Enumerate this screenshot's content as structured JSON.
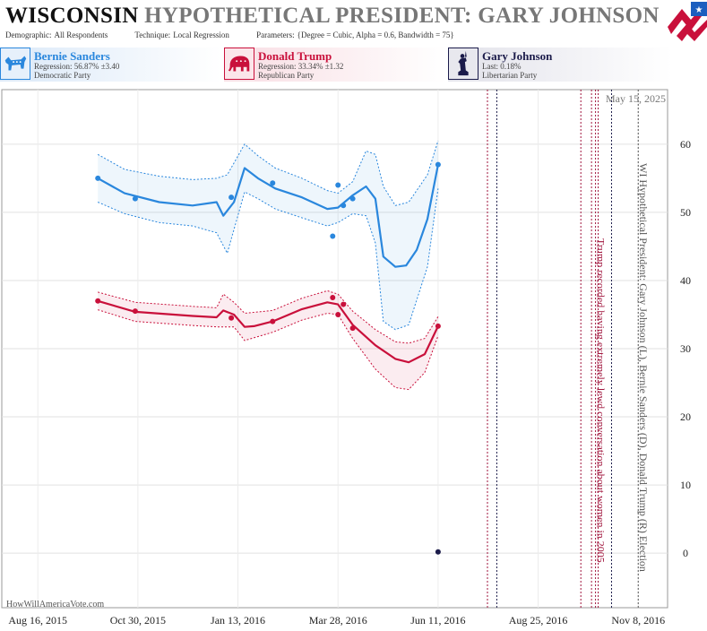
{
  "header": {
    "state": "WISCONSIN",
    "race": "HYPOTHETICAL PRESIDENT: GARY JOHNSON (L), BERNIE SANDERS (D), DONALD TRUMP (R)",
    "demographic_label": "Demographic:",
    "demographic": "All Respondents",
    "technique_label": "Technique:",
    "technique": "Local Regression",
    "parameters_label": "Parameters:",
    "parameters": "{Degree = Cubic, Alpha = 0.6, Bandwidth = 75}"
  },
  "legend": [
    {
      "name": "Bernie Sanders",
      "line1": "Regression: 56.87% ±3.40",
      "line2": "Democratic Party",
      "icon": "donkey-icon",
      "color": "#2a87dd"
    },
    {
      "name": "Donald Trump",
      "line1": "Regression: 33.34% ±1.32",
      "line2": "Republican Party",
      "icon": "elephant-icon",
      "color": "#c9103b"
    },
    {
      "name": "Gary Johnson",
      "line1": "Last: 0.18%",
      "line2": "Libertarian Party",
      "icon": "statue-of-liberty-icon",
      "color": "#1b1b4a"
    }
  ],
  "chart_data": {
    "type": "line",
    "title": "WISCONSIN HYPOTHETICAL PRESIDENT: GARY JOHNSON (L), BERNIE SANDERS (D), DONALD TRUMP (R)",
    "x_ticks": [
      "Aug 16, 2015",
      "Oct 30, 2015",
      "Jan 13, 2016",
      "Mar 28, 2016",
      "Jun 11, 2016",
      "Aug 25, 2016",
      "Nov 8, 2016"
    ],
    "xlim": [
      "2015-07-20",
      "2016-11-30"
    ],
    "ylim": [
      -8,
      68
    ],
    "y_ticks": [
      0,
      10,
      20,
      30,
      40,
      50,
      60
    ],
    "grid": true,
    "side_label": "WI Hypothetical President: Gary Johnson (L), Bernie Sanders (D), Donald Trump (R) Election",
    "corner_date": "May 15, 2025",
    "event_label": "Trump recorded having extremely lewd conversation about women in 2005",
    "footer": "HowWillAmericaVote.com",
    "series": [
      {
        "name": "Bernie Sanders",
        "color": "#2a87dd",
        "points": [
          [
            "2015-09-30",
            55.0
          ],
          [
            "2015-10-28",
            52.0
          ],
          [
            "2016-01-08",
            52.2
          ],
          [
            "2016-02-08",
            54.3
          ],
          [
            "2016-03-24",
            46.5
          ],
          [
            "2016-03-28",
            54.0
          ],
          [
            "2016-04-01",
            51.0
          ],
          [
            "2016-04-08",
            52.0
          ],
          [
            "2016-06-11",
            57.0
          ]
        ],
        "trend": [
          [
            "2015-09-30",
            55.0
          ],
          [
            "2015-10-20",
            52.8
          ],
          [
            "2015-11-15",
            51.5
          ],
          [
            "2015-12-10",
            51.0
          ],
          [
            "2015-12-28",
            51.5
          ],
          [
            "2016-01-02",
            49.5
          ],
          [
            "2016-01-10",
            51.5
          ],
          [
            "2016-01-18",
            56.5
          ],
          [
            "2016-01-28",
            55.0
          ],
          [
            "2016-02-10",
            53.5
          ],
          [
            "2016-03-01",
            52.2
          ],
          [
            "2016-03-20",
            50.5
          ],
          [
            "2016-03-28",
            50.7
          ],
          [
            "2016-04-08",
            52.5
          ],
          [
            "2016-04-18",
            53.8
          ],
          [
            "2016-04-25",
            52.0
          ],
          [
            "2016-05-01",
            43.5
          ],
          [
            "2016-05-10",
            42.0
          ],
          [
            "2016-05-18",
            42.2
          ],
          [
            "2016-05-26",
            44.5
          ],
          [
            "2016-06-03",
            49.0
          ],
          [
            "2016-06-11",
            57.0
          ]
        ],
        "band_upper": [
          [
            "2015-09-30",
            58.5
          ],
          [
            "2015-10-20",
            56.3
          ],
          [
            "2015-11-15",
            55.3
          ],
          [
            "2015-12-10",
            54.8
          ],
          [
            "2015-12-28",
            55.0
          ],
          [
            "2016-01-05",
            55.5
          ],
          [
            "2016-01-18",
            60.0
          ],
          [
            "2016-01-28",
            58.3
          ],
          [
            "2016-02-10",
            56.5
          ],
          [
            "2016-03-01",
            55.0
          ],
          [
            "2016-03-20",
            53.2
          ],
          [
            "2016-03-28",
            52.8
          ],
          [
            "2016-04-08",
            54.5
          ],
          [
            "2016-04-18",
            59.0
          ],
          [
            "2016-04-25",
            58.5
          ],
          [
            "2016-05-01",
            53.8
          ],
          [
            "2016-05-10",
            51.0
          ],
          [
            "2016-05-20",
            51.5
          ],
          [
            "2016-06-03",
            55.5
          ],
          [
            "2016-06-11",
            60.5
          ]
        ],
        "band_lower": [
          [
            "2015-09-30",
            51.5
          ],
          [
            "2015-10-20",
            49.8
          ],
          [
            "2015-11-15",
            48.5
          ],
          [
            "2015-12-10",
            48.0
          ],
          [
            "2015-12-28",
            47.0
          ],
          [
            "2016-01-05",
            44.0
          ],
          [
            "2016-01-18",
            53.0
          ],
          [
            "2016-01-28",
            52.0
          ],
          [
            "2016-02-10",
            50.5
          ],
          [
            "2016-03-01",
            49.2
          ],
          [
            "2016-03-20",
            48.0
          ],
          [
            "2016-03-28",
            48.5
          ],
          [
            "2016-04-08",
            49.8
          ],
          [
            "2016-04-18",
            49.5
          ],
          [
            "2016-04-25",
            45.5
          ],
          [
            "2016-05-01",
            34.0
          ],
          [
            "2016-05-10",
            32.8
          ],
          [
            "2016-05-20",
            33.5
          ],
          [
            "2016-06-03",
            42.0
          ],
          [
            "2016-06-11",
            53.5
          ]
        ]
      },
      {
        "name": "Donald Trump",
        "color": "#c9103b",
        "points": [
          [
            "2015-09-30",
            37.0
          ],
          [
            "2015-10-28",
            35.5
          ],
          [
            "2016-01-08",
            34.5
          ],
          [
            "2016-02-08",
            34.0
          ],
          [
            "2016-03-24",
            37.5
          ],
          [
            "2016-03-28",
            35.0
          ],
          [
            "2016-04-01",
            36.5
          ],
          [
            "2016-04-08",
            33.0
          ],
          [
            "2016-06-11",
            33.3
          ]
        ],
        "trend": [
          [
            "2015-09-30",
            37.0
          ],
          [
            "2015-10-28",
            35.4
          ],
          [
            "2015-12-10",
            34.8
          ],
          [
            "2015-12-28",
            34.6
          ],
          [
            "2016-01-02",
            35.6
          ],
          [
            "2016-01-10",
            35.0
          ],
          [
            "2016-01-18",
            33.2
          ],
          [
            "2016-01-25",
            33.3
          ],
          [
            "2016-02-08",
            34.0
          ],
          [
            "2016-03-01",
            35.8
          ],
          [
            "2016-03-20",
            36.8
          ],
          [
            "2016-03-28",
            36.5
          ],
          [
            "2016-04-08",
            33.5
          ],
          [
            "2016-04-25",
            30.5
          ],
          [
            "2016-05-10",
            28.5
          ],
          [
            "2016-05-20",
            28.0
          ],
          [
            "2016-06-01",
            29.2
          ],
          [
            "2016-06-11",
            33.3
          ]
        ],
        "band_upper": [
          [
            "2015-09-30",
            38.3
          ],
          [
            "2015-10-28",
            36.8
          ],
          [
            "2015-12-10",
            36.2
          ],
          [
            "2015-12-28",
            36.0
          ],
          [
            "2016-01-02",
            38.0
          ],
          [
            "2016-01-10",
            36.8
          ],
          [
            "2016-01-18",
            35.2
          ],
          [
            "2016-02-08",
            35.6
          ],
          [
            "2016-03-01",
            37.4
          ],
          [
            "2016-03-20",
            38.5
          ],
          [
            "2016-03-28",
            38.0
          ],
          [
            "2016-04-08",
            35.5
          ],
          [
            "2016-04-25",
            32.8
          ],
          [
            "2016-05-10",
            31.0
          ],
          [
            "2016-05-20",
            30.8
          ],
          [
            "2016-06-01",
            31.5
          ],
          [
            "2016-06-11",
            34.7
          ]
        ],
        "band_lower": [
          [
            "2015-09-30",
            35.7
          ],
          [
            "2015-10-28",
            34.0
          ],
          [
            "2015-12-10",
            33.4
          ],
          [
            "2015-12-28",
            33.2
          ],
          [
            "2016-01-02",
            33.2
          ],
          [
            "2016-01-10",
            33.2
          ],
          [
            "2016-01-18",
            31.2
          ],
          [
            "2016-02-08",
            32.4
          ],
          [
            "2016-03-01",
            34.2
          ],
          [
            "2016-03-20",
            35.2
          ],
          [
            "2016-03-28",
            35.0
          ],
          [
            "2016-04-08",
            31.5
          ],
          [
            "2016-04-25",
            27.0
          ],
          [
            "2016-05-10",
            24.3
          ],
          [
            "2016-05-20",
            24.0
          ],
          [
            "2016-06-01",
            26.5
          ],
          [
            "2016-06-11",
            31.9
          ]
        ]
      },
      {
        "name": "Gary Johnson",
        "color": "#1b1b4a",
        "points": [
          [
            "2016-06-11",
            0.18
          ]
        ]
      }
    ],
    "event_lines": [
      {
        "date": "2016-07-18",
        "color": "#a0143c"
      },
      {
        "date": "2016-07-25",
        "color": "#1b1b4a"
      },
      {
        "date": "2016-09-26",
        "color": "#a0143c"
      },
      {
        "date": "2016-10-04",
        "color": "#a0143c"
      },
      {
        "date": "2016-10-07",
        "color": "#a0143c"
      },
      {
        "date": "2016-10-09",
        "color": "#a0143c"
      },
      {
        "date": "2016-10-19",
        "color": "#1b1b4a"
      },
      {
        "date": "2016-11-08",
        "color": "#555555"
      }
    ]
  }
}
